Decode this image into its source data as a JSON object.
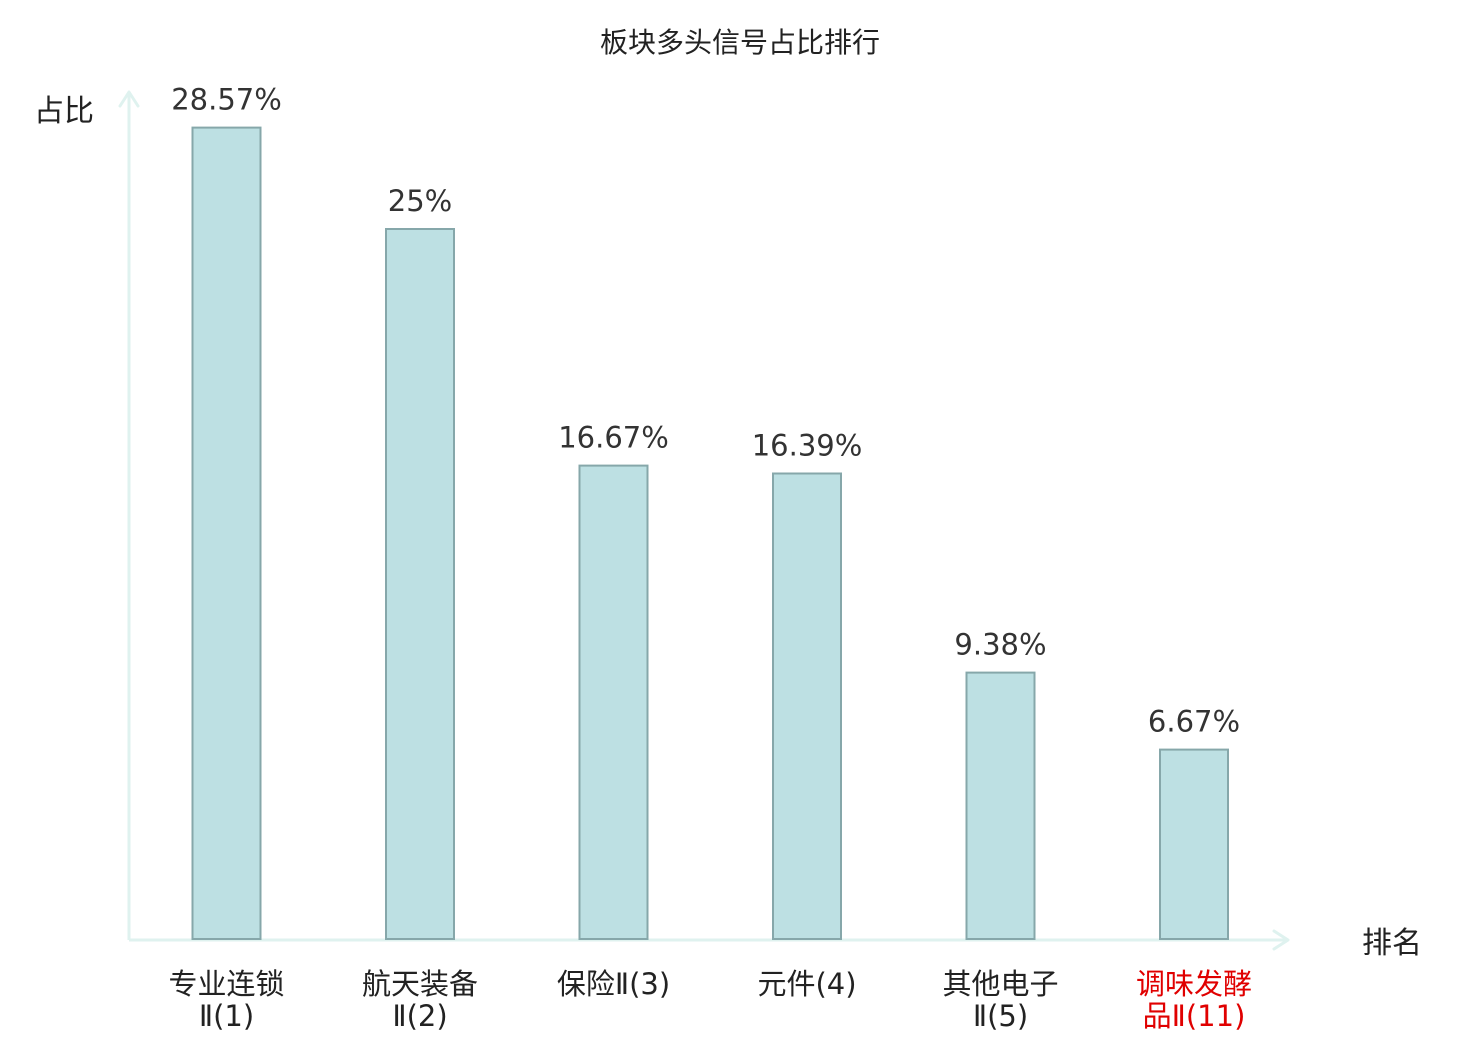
{
  "chart_data": {
    "type": "bar",
    "title": "板块多头信号占比排行",
    "ylabel": "占比",
    "xlabel": "排名",
    "categories": [
      {
        "lines": [
          "专业连锁",
          "Ⅱ(1)"
        ],
        "highlight": false
      },
      {
        "lines": [
          "航天装备",
          "Ⅱ(2)"
        ],
        "highlight": false
      },
      {
        "lines": [
          "保险Ⅱ(3)"
        ],
        "highlight": false
      },
      {
        "lines": [
          "元件(4)"
        ],
        "highlight": false
      },
      {
        "lines": [
          "其他电子",
          "Ⅱ(5)"
        ],
        "highlight": false
      },
      {
        "lines": [
          "调味发酵",
          "品Ⅱ(11)"
        ],
        "highlight": true
      }
    ],
    "values": [
      28.57,
      25,
      16.67,
      16.39,
      9.38,
      6.67
    ],
    "value_labels": [
      "28.57%",
      "25%",
      "16.67%",
      "16.39%",
      "9.38%",
      "6.67%"
    ],
    "ylim": [
      0,
      30
    ],
    "grid": false,
    "legend": "none"
  },
  "colors": {
    "bar_fill": "#bde0e3",
    "bar_stroke": "#86a7aa",
    "axis": "#dff2ef",
    "text": "#222222",
    "value_text": "#333333",
    "category_text": "#222222",
    "highlight_text": "#e00000"
  }
}
